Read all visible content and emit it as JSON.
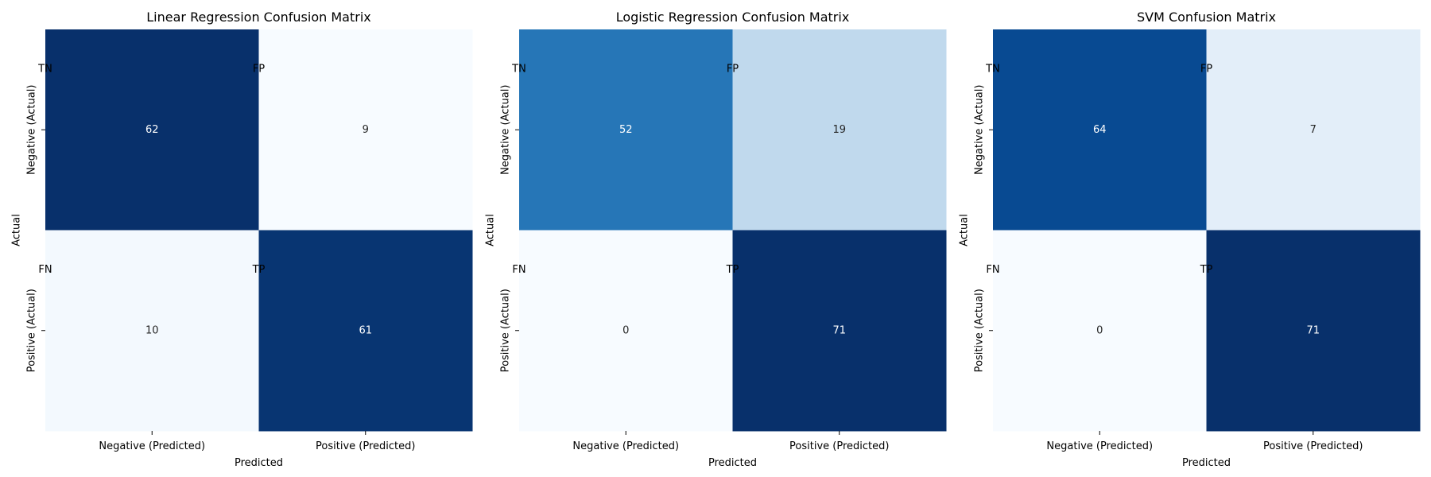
{
  "chart_data": [
    {
      "type": "heatmap",
      "title": "Linear Regression Confusion Matrix",
      "xlabel": "Predicted",
      "ylabel": "Actual",
      "x_categories": [
        "Negative (Predicted)",
        "Positive (Predicted)"
      ],
      "y_categories": [
        "Negative (Actual)",
        "Positive (Actual)"
      ],
      "values": [
        [
          62,
          9
        ],
        [
          10,
          61
        ]
      ],
      "cell_tags": [
        [
          "TN",
          "FP"
        ],
        [
          "FN",
          "TP"
        ]
      ],
      "colormap": "Blues",
      "colorbar": false
    },
    {
      "type": "heatmap",
      "title": "Logistic Regression Confusion Matrix",
      "xlabel": "Predicted",
      "ylabel": "Actual",
      "x_categories": [
        "Negative (Predicted)",
        "Positive (Predicted)"
      ],
      "y_categories": [
        "Negative (Actual)",
        "Positive (Actual)"
      ],
      "values": [
        [
          52,
          19
        ],
        [
          0,
          71
        ]
      ],
      "cell_tags": [
        [
          "TN",
          "FP"
        ],
        [
          "FN",
          "TP"
        ]
      ],
      "colormap": "Blues",
      "colorbar": false
    },
    {
      "type": "heatmap",
      "title": "SVM Confusion Matrix",
      "xlabel": "Predicted",
      "ylabel": "Actual",
      "x_categories": [
        "Negative (Predicted)",
        "Positive (Predicted)"
      ],
      "y_categories": [
        "Negative (Actual)",
        "Positive (Actual)"
      ],
      "values": [
        [
          64,
          7
        ],
        [
          0,
          71
        ]
      ],
      "cell_tags": [
        [
          "TN",
          "FP"
        ],
        [
          "FN",
          "TP"
        ]
      ],
      "colormap": "Blues",
      "colorbar": false
    }
  ]
}
